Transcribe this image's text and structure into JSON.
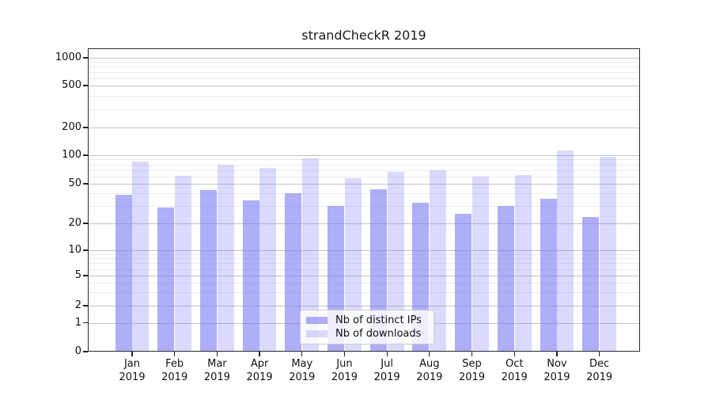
{
  "chart_data": {
    "type": "bar",
    "title": "strandCheckR 2019",
    "categories": [
      "Jan 2019",
      "Feb 2019",
      "Mar 2019",
      "Apr 2019",
      "May 2019",
      "Jun 2019",
      "Jul 2019",
      "Aug 2019",
      "Sep 2019",
      "Oct 2019",
      "Nov 2019",
      "Dec 2019"
    ],
    "series": [
      {
        "name": "Nb of distinct IPs",
        "color": "rgba(120,120,245,0.60)",
        "values": [
          39,
          29,
          43,
          34,
          40,
          30,
          44,
          32,
          25,
          30,
          35,
          23
        ]
      },
      {
        "name": "Nb of downloads",
        "color": "rgba(120,120,245,0.27)",
        "values": [
          85,
          61,
          79,
          74,
          93,
          57,
          67,
          70,
          60,
          62,
          113,
          97
        ]
      }
    ],
    "xlabel": "",
    "ylabel": "",
    "yscale": "symlog",
    "yticks": [
      0,
      1,
      2,
      5,
      10,
      20,
      50,
      100,
      200,
      500,
      1000
    ],
    "ylim": [
      0,
      1200
    ],
    "grid": "horizontal major and log-minor gridlines",
    "legend_position": "bottom-center-inside"
  },
  "colors": {
    "bar_ips": "rgba(120,120,245,0.60)",
    "bar_downloads": "rgba(120,120,245,0.27)",
    "grid_major": "#c3c3c3",
    "grid_minor": "#ececec",
    "spine": "#2b2b2b"
  }
}
